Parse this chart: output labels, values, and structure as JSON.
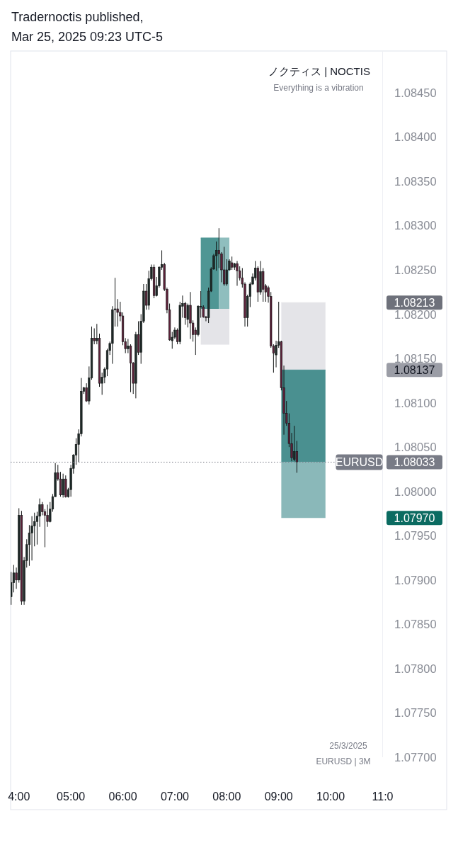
{
  "chart_data": {
    "type": "candlestick",
    "title": "Tradernoctis published,",
    "subtitle": "Mar 25, 2025 09:23 UTC-5",
    "x": [
      3.85,
      3.9,
      3.95,
      4,
      4.05,
      4.1,
      4.15,
      4.2,
      4.25,
      4.3,
      4.35,
      4.4,
      4.45,
      4.5,
      4.55,
      4.6,
      4.65,
      4.7,
      4.75,
      4.8,
      4.85,
      4.9,
      4.95,
      5,
      5.05,
      5.1,
      5.15,
      5.2,
      5.25,
      5.3,
      5.35,
      5.4,
      5.45,
      5.5,
      5.55,
      5.6,
      5.65,
      5.7,
      5.75,
      5.8,
      5.85,
      5.9,
      5.95,
      6,
      6.05,
      6.1,
      6.15,
      6.2,
      6.25,
      6.3,
      6.35,
      6.4,
      6.45,
      6.5,
      6.55,
      6.6,
      6.65,
      6.7,
      6.75,
      6.8,
      6.85,
      6.9,
      6.95,
      7,
      7.05,
      7.1,
      7.15,
      7.2,
      7.25,
      7.3,
      7.35,
      7.4,
      7.45,
      7.5,
      7.55,
      7.6,
      7.65,
      7.7,
      7.75,
      7.8,
      7.85,
      7.9,
      7.95,
      8,
      8.05,
      8.1,
      8.15,
      8.2,
      8.25,
      8.3,
      8.35,
      8.4,
      8.45,
      8.5,
      8.55,
      8.6,
      8.65,
      8.7,
      8.75,
      8.8,
      8.85,
      8.9,
      8.95,
      9,
      9.05,
      9.1,
      9.15,
      9.2,
      9.25,
      9.3,
      9.35
    ],
    "ohlc": [
      [
        1.07881,
        1.07909,
        1.07872,
        1.07897
      ],
      [
        1.07897,
        1.07917,
        1.07886,
        1.07908
      ],
      [
        1.07908,
        1.07914,
        1.0789,
        1.079
      ],
      [
        1.079,
        1.07981,
        1.07897,
        1.07973
      ],
      [
        1.07973,
        1.07978,
        1.07872,
        1.07876
      ],
      [
        1.07876,
        1.07926,
        1.07872,
        1.07922
      ],
      [
        1.07922,
        1.07946,
        1.07914,
        1.0794
      ],
      [
        1.0794,
        1.07962,
        1.07916,
        1.07953
      ],
      [
        1.07953,
        1.07972,
        1.07922,
        1.07961
      ],
      [
        1.07961,
        1.07976,
        1.07938,
        1.07966
      ],
      [
        1.07966,
        1.07977,
        1.0794,
        1.07972
      ],
      [
        1.07972,
        1.07992,
        1.0796,
        1.07985
      ],
      [
        1.07985,
        1.07988,
        1.07973,
        1.07977
      ],
      [
        1.07977,
        1.0798,
        1.07937,
        1.07973
      ],
      [
        1.07973,
        1.07985,
        1.0796,
        1.07966
      ],
      [
        1.07966,
        1.07988,
        1.07965,
        1.0798
      ],
      [
        1.0798,
        1.07997,
        1.07977,
        1.07994
      ],
      [
        1.07994,
        1.08032,
        1.07994,
        1.08021
      ],
      [
        1.08021,
        1.0803,
        1.08012,
        1.08014
      ],
      [
        1.08014,
        1.08022,
        1.07994,
        1.07996
      ],
      [
        1.07996,
        1.0802,
        1.07993,
        1.08014
      ],
      [
        1.08014,
        1.08018,
        1.07993,
        1.07994
      ],
      [
        1.07994,
        1.08004,
        1.07993,
        1.08002
      ],
      [
        1.08002,
        1.0803,
        1.07994,
        1.08026
      ],
      [
        1.08026,
        1.08042,
        1.0802,
        1.08041
      ],
      [
        1.08041,
        1.0806,
        1.0803,
        1.08053
      ],
      [
        1.08053,
        1.0807,
        1.08033,
        1.08065
      ],
      [
        1.08065,
        1.08128,
        1.08062,
        1.08113
      ],
      [
        1.08113,
        1.08118,
        1.0811,
        1.08117
      ],
      [
        1.08117,
        1.08122,
        1.08101,
        1.08102
      ],
      [
        1.08102,
        1.08141,
        1.08098,
        1.08128
      ],
      [
        1.08128,
        1.08186,
        1.08126,
        1.08173
      ],
      [
        1.08173,
        1.08184,
        1.08166,
        1.0817
      ],
      [
        1.0817,
        1.08189,
        1.08166,
        1.08173
      ],
      [
        1.08173,
        1.08178,
        1.08118,
        1.08122
      ],
      [
        1.08122,
        1.08134,
        1.08109,
        1.08129
      ],
      [
        1.08129,
        1.0814,
        1.08122,
        1.08138
      ],
      [
        1.08138,
        1.08161,
        1.0813,
        1.08159
      ],
      [
        1.08159,
        1.08169,
        1.08154,
        1.08167
      ],
      [
        1.08167,
        1.08209,
        1.08144,
        1.08205
      ],
      [
        1.08205,
        1.08241,
        1.08186,
        1.08206
      ],
      [
        1.08206,
        1.08217,
        1.08186,
        1.08202
      ],
      [
        1.08202,
        1.08214,
        1.08192,
        1.08198
      ],
      [
        1.08198,
        1.08202,
        1.08165,
        1.08169
      ],
      [
        1.08169,
        1.08173,
        1.08156,
        1.08161
      ],
      [
        1.08161,
        1.08172,
        1.08156,
        1.08164
      ],
      [
        1.08164,
        1.08166,
        1.08112,
        1.08145
      ],
      [
        1.08145,
        1.08146,
        1.0811,
        1.08122
      ],
      [
        1.08122,
        1.0818,
        1.08105,
        1.08177
      ],
      [
        1.08177,
        1.08192,
        1.08154,
        1.08157
      ],
      [
        1.08157,
        1.082,
        1.08144,
        1.08192
      ],
      [
        1.08192,
        1.08234,
        1.0819,
        1.08226
      ],
      [
        1.08226,
        1.08234,
        1.08205,
        1.0821
      ],
      [
        1.0821,
        1.08249,
        1.08205,
        1.0824
      ],
      [
        1.0824,
        1.08256,
        1.08238,
        1.08253
      ],
      [
        1.08253,
        1.08256,
        1.08218,
        1.08221
      ],
      [
        1.08221,
        1.08242,
        1.0822,
        1.08232
      ],
      [
        1.08232,
        1.08254,
        1.0823,
        1.08253
      ],
      [
        1.08253,
        1.08272,
        1.0825,
        1.08256
      ],
      [
        1.08256,
        1.08258,
        1.08226,
        1.08228
      ],
      [
        1.08228,
        1.0823,
        1.08201,
        1.08205
      ],
      [
        1.08205,
        1.08212,
        1.0817,
        1.08171
      ],
      [
        1.0817,
        1.0818,
        1.08161,
        1.08174
      ],
      [
        1.08174,
        1.08185,
        1.08172,
        1.08182
      ],
      [
        1.08182,
        1.08184,
        1.08166,
        1.08169
      ],
      [
        1.08169,
        1.08214,
        1.08166,
        1.0821
      ],
      [
        1.08209,
        1.08221,
        1.08196,
        1.08212
      ],
      [
        1.08212,
        1.08214,
        1.08188,
        1.08196
      ],
      [
        1.08194,
        1.08212,
        1.08185,
        1.0821
      ],
      [
        1.0821,
        1.08225,
        1.08172,
        1.0819
      ],
      [
        1.0819,
        1.08193,
        1.08169,
        1.08177
      ],
      [
        1.08182,
        1.08185,
        1.08154,
        1.08177
      ],
      [
        1.08177,
        1.0821,
        1.08175,
        1.08209
      ],
      [
        1.08208,
        1.08226,
        1.08196,
        1.08209
      ],
      [
        1.08208,
        1.0821,
        1.08196,
        1.08197
      ],
      [
        1.08197,
        1.08198,
        1.08192,
        1.08196
      ],
      [
        1.08196,
        1.0823,
        1.0819,
        1.08226
      ],
      [
        1.08226,
        1.08253,
        1.08225,
        1.08251
      ],
      [
        1.08251,
        1.08268,
        1.0825,
        1.08266
      ],
      [
        1.08266,
        1.08282,
        1.08249,
        1.08272
      ],
      [
        1.08272,
        1.08297,
        1.08252,
        1.08268
      ],
      [
        1.08268,
        1.0827,
        1.08236,
        1.0825
      ],
      [
        1.0825,
        1.08276,
        1.08232,
        1.08234
      ],
      [
        1.08234,
        1.08262,
        1.08232,
        1.0825
      ],
      [
        1.0825,
        1.08262,
        1.08249,
        1.0826
      ],
      [
        1.08258,
        1.08265,
        1.0825,
        1.08253
      ],
      [
        1.08253,
        1.08258,
        1.0825,
        1.08257
      ],
      [
        1.08257,
        1.0826,
        1.08232,
        1.08249
      ],
      [
        1.08249,
        1.08254,
        1.08238,
        1.08241
      ],
      [
        1.08241,
        1.08252,
        1.0823,
        1.08234
      ],
      [
        1.08234,
        1.08236,
        1.08186,
        1.08196
      ],
      [
        1.08196,
        1.08222,
        1.08186,
        1.0822
      ],
      [
        1.0822,
        1.08236,
        1.08208,
        1.08234
      ],
      [
        1.08234,
        1.08246,
        1.08233,
        1.08242
      ],
      [
        1.08241,
        1.0826,
        1.08238,
        1.08252
      ],
      [
        1.08252,
        1.08254,
        1.08214,
        1.08225
      ],
      [
        1.08225,
        1.0826,
        1.08222,
        1.08248
      ],
      [
        1.08248,
        1.08252,
        1.08214,
        1.08228
      ],
      [
        1.08232,
        1.08234,
        1.08214,
        1.08225
      ],
      [
        1.0823,
        1.08232,
        1.08213,
        1.0822
      ],
      [
        1.0822,
        1.08225,
        1.08162,
        1.08164
      ],
      [
        1.08164,
        1.08166,
        1.08134,
        1.08156
      ],
      [
        1.08154,
        1.0817,
        1.0814,
        1.08165
      ],
      [
        1.08165,
        1.08214,
        1.08162,
        1.08169
      ],
      [
        1.08169,
        1.0817,
        1.08114,
        1.08117
      ],
      [
        1.08117,
        1.08142,
        1.08064,
        1.08088
      ],
      [
        1.08088,
        1.08102,
        1.08074,
        1.08077
      ],
      [
        1.08077,
        1.08088,
        1.0805,
        1.08054
      ],
      [
        1.08054,
        1.08066,
        1.08034,
        1.08038
      ],
      [
        1.08036,
        1.08074,
        1.08034,
        1.08045
      ],
      [
        1.08045,
        1.08057,
        1.08021,
        1.08033
      ]
    ],
    "series": [
      {
        "type": "line",
        "x": [
          7.5,
          7.85
        ],
        "values": [
          1.08286,
          1.08286
        ],
        "lower": [
          1.08206,
          1.08206
        ],
        "upper": [
          1.08286,
          1.08286
        ],
        "color": "#4f9694"
      },
      {
        "type": "line",
        "x": [
          7.85,
          8.05
        ],
        "values": [
          1.08286,
          1.08286
        ],
        "lower": [
          1.08206,
          1.08206
        ],
        "upper": [
          1.08286,
          1.08286
        ],
        "color": "#8fbebe"
      },
      {
        "type": "line",
        "x": [
          7.5,
          8.05
        ],
        "values": [
          1.08166,
          1.08166
        ],
        "lower": [
          1.08166,
          1.08166
        ],
        "upper": [
          1.08206,
          1.08206
        ],
        "color": "#e4e4e8"
      },
      {
        "type": "line",
        "x": [
          9.05,
          9.9
        ],
        "values": [
          1.08213,
          1.08213
        ],
        "lower": [
          1.08137,
          1.08137
        ],
        "upper": [
          1.08213,
          1.08213
        ],
        "color": "#e4e4e8"
      },
      {
        "type": "line",
        "x": [
          9.05,
          9.9
        ],
        "values": [
          1.08137,
          1.08137
        ],
        "lower": [
          1.08033,
          1.08033
        ],
        "upper": [
          1.08137,
          1.08137
        ],
        "color": "#4a9090"
      },
      {
        "type": "line",
        "x": [
          9.05,
          9.9
        ],
        "values": [
          1.08033,
          1.08033
        ],
        "lower": [
          1.0797,
          1.0797
        ],
        "upper": [
          1.08033,
          1.08033
        ],
        "color": "#8ab8b9"
      }
    ],
    "xlim": [
      3.84,
      11
    ],
    "xticks": [
      {
        "value": 4,
        "label": "4:00"
      },
      {
        "value": 5,
        "label": "05:00"
      },
      {
        "value": 6,
        "label": "06:00"
      },
      {
        "value": 7,
        "label": "07:00"
      },
      {
        "value": 8,
        "label": "08:00"
      },
      {
        "value": 9,
        "label": "09:00"
      },
      {
        "value": 10,
        "label": "10:00"
      },
      {
        "value": 11,
        "label": "11:0"
      }
    ],
    "ylim": [
      1.077,
      1.08497
    ],
    "yticks": [
      {
        "value": 1.077,
        "label": "1.07700"
      },
      {
        "value": 1.0775,
        "label": "1.07750"
      },
      {
        "value": 1.078,
        "label": "1.07800"
      },
      {
        "value": 1.0785,
        "label": "1.07850"
      },
      {
        "value": 1.079,
        "label": "1.07900"
      },
      {
        "value": 1.0795,
        "label": "1.07950"
      },
      {
        "value": 1.08,
        "label": "1.08000"
      },
      {
        "value": 1.0805,
        "label": "1.08050"
      },
      {
        "value": 1.081,
        "label": "1.08100"
      },
      {
        "value": 1.0815,
        "label": "1.08150"
      },
      {
        "value": 1.082,
        "label": "1.08200"
      },
      {
        "value": 1.0825,
        "label": "1.08250"
      },
      {
        "value": 1.083,
        "label": "1.08300"
      },
      {
        "value": 1.0835,
        "label": "1.08350"
      },
      {
        "value": 1.084,
        "label": "1.08400"
      },
      {
        "value": 1.0845,
        "label": "1.08450"
      }
    ],
    "y2lim": [
      1.077,
      1.08497
    ],
    "y2ticks": [
      {
        "value": 1.08213,
        "label": "1.08213"
      },
      {
        "value": 1.08137,
        "label": "1.08137"
      },
      {
        "value": 1.08033,
        "label": "1.08033"
      },
      {
        "value": 1.0797,
        "label": "1.07970"
      }
    ],
    "ref_lines": [
      {
        "axis": "y",
        "value": 1.08033,
        "label": "EURUSD",
        "line_style": "dotted",
        "color": "#787b86"
      }
    ],
    "annotations": [
      "ノクティス | NOCTIS",
      "Everything is a vibration",
      "25/3/2025",
      "EURUSD | 3M"
    ]
  }
}
